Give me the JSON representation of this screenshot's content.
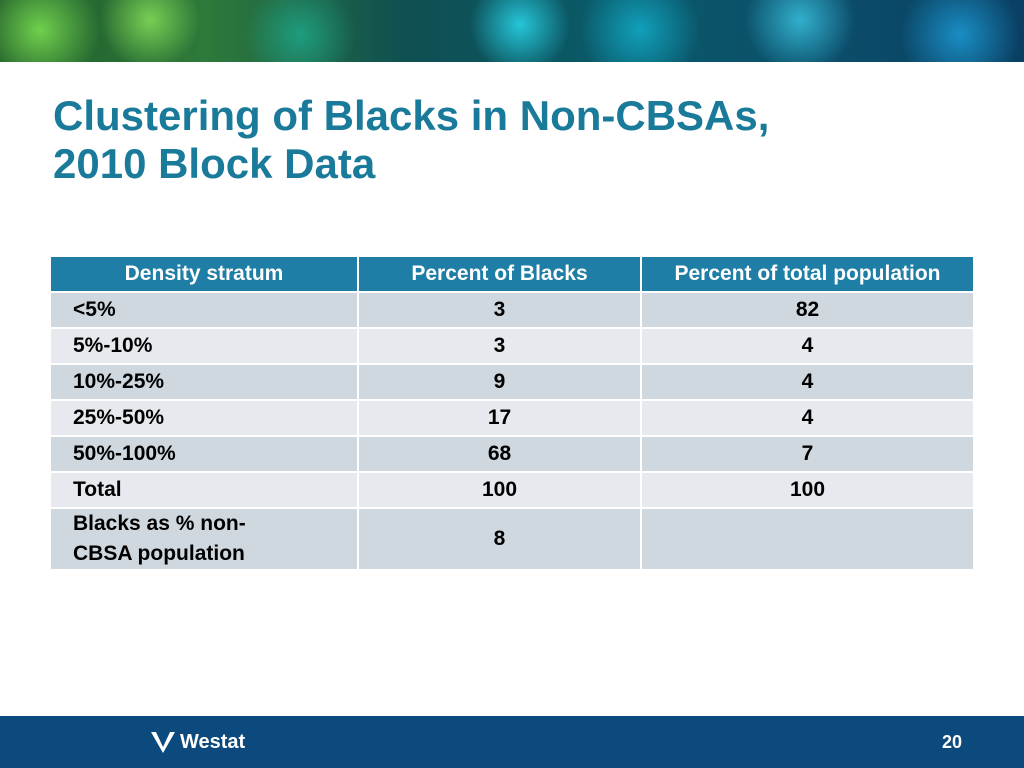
{
  "slide": {
    "title_line1": "Clustering of Blacks in Non-CBSAs,",
    "title_line2": "2010 Block Data",
    "page_number": "20"
  },
  "table": {
    "headers": [
      "Density stratum",
      "Percent of Blacks",
      "Percent of total population"
    ],
    "rows": [
      {
        "stratum": "<5%",
        "pct_blacks": "3",
        "pct_total": "82"
      },
      {
        "stratum": "5%-10%",
        "pct_blacks": "3",
        "pct_total": "4"
      },
      {
        "stratum": "10%-25%",
        "pct_blacks": "9",
        "pct_total": "4"
      },
      {
        "stratum": "25%-50%",
        "pct_blacks": "17",
        "pct_total": "4"
      },
      {
        "stratum": "50%-100%",
        "pct_blacks": "68",
        "pct_total": "7"
      },
      {
        "stratum": "Total",
        "pct_blacks": "100",
        "pct_total": "100"
      }
    ],
    "last_row": {
      "stratum_line1": "Blacks as % non-",
      "stratum_line2": "CBSA population",
      "pct_blacks": "8",
      "pct_total": ""
    }
  },
  "footer": {
    "logo_text": "Westat",
    "logo_icon": "westat-logo-icon"
  },
  "colors": {
    "title": "#1a7a9a",
    "header_bg": "#1f7ea6",
    "row_dark": "#cfd8df",
    "row_light": "#e6eaee",
    "footer_bg": "#0c4a7e"
  }
}
